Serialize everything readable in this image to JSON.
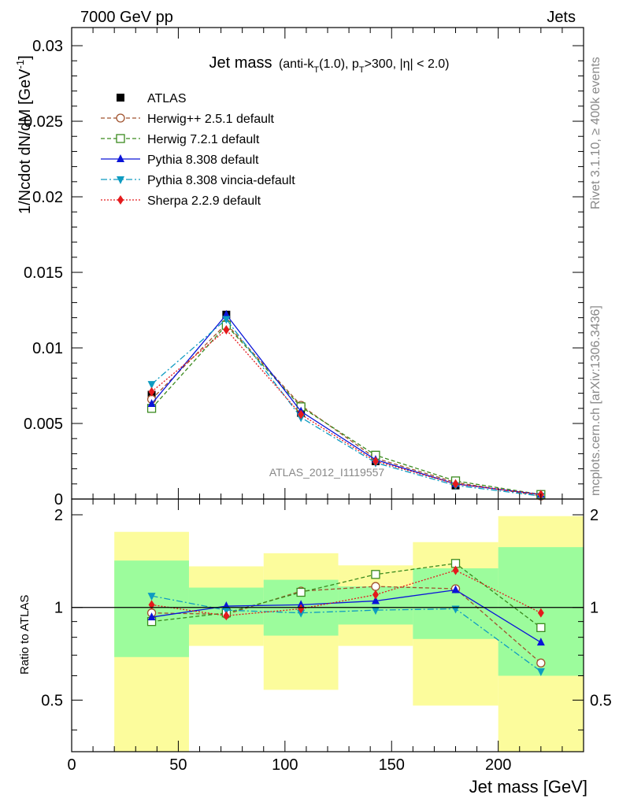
{
  "header": {
    "left": "7000 GeV pp",
    "right": "Jets"
  },
  "side_texts": {
    "rivet": "Rivet 3.1.10, ≥ 400k events",
    "mcplots": "mcplots.cern.ch [arXiv:1306.3436]"
  },
  "watermark": "ATLAS_2012_I1119557",
  "chart_data": {
    "type": "line",
    "title": {
      "main": "Jet mass",
      "detail": "(anti-k",
      "detail_sub": "T",
      "detail_mid": "(1.0), p",
      "detail_sub2": "T",
      "detail_end": ">300, |η| < 2.0)"
    },
    "xlabel": "Jet mass [GeV]",
    "ylabel_main": "1/Ncdot dN/dM [GeV",
    "ylabel_sup": "-1",
    "ylabel_main_close": "]",
    "ylabel_ratio": "Ratio to ATLAS",
    "xlim": [
      0,
      240
    ],
    "ylim_main": [
      0,
      0.0312
    ],
    "ylim_ratio": [
      0.34,
      2.25
    ],
    "x_ticks": [
      "0",
      "50",
      "100",
      "150",
      "200"
    ],
    "y_ticks_main": [
      "0",
      "0.005",
      "0.01",
      "0.015",
      "0.02",
      "0.025",
      "0.03"
    ],
    "y_ticks_ratio": [
      "0.5",
      "1",
      "2"
    ],
    "x": [
      37.5,
      72.5,
      107.5,
      142.5,
      180,
      220
    ],
    "bin_edges": [
      20,
      55,
      90,
      125,
      160,
      200,
      240
    ],
    "data": {
      "name": "ATLAS",
      "values": [
        0.0069,
        0.0122,
        0.0057,
        0.0025,
        0.0009,
        0.0003
      ]
    },
    "ratio_bands": {
      "inner": [
        [
          0.69,
          1.42
        ],
        [
          0.88,
          1.16
        ],
        [
          0.81,
          1.23
        ],
        [
          0.88,
          1.17
        ],
        [
          0.79,
          1.34
        ],
        [
          0.6,
          1.57
        ]
      ],
      "outer": [
        [
          0.34,
          1.76
        ],
        [
          0.75,
          1.36
        ],
        [
          0.54,
          1.5
        ],
        [
          0.75,
          1.37
        ],
        [
          0.48,
          1.63
        ],
        [
          0.34,
          1.98
        ]
      ],
      "inner_color": "#9cfc9c",
      "outer_color": "#fcfc9c"
    },
    "legend_position": "top-left",
    "series": [
      {
        "name": "Herwig++ 2.5.1 default",
        "color": "#a0522d",
        "dash": "5,3",
        "marker": "circle-open",
        "values": [
          0.0066,
          0.0116,
          0.0062,
          0.0027,
          0.0011,
          0.0002
        ],
        "ratio": [
          0.96,
          0.95,
          1.13,
          1.17,
          1.15,
          0.66
        ]
      },
      {
        "name": "Herwig 7.2.1 default",
        "color": "#3a8a1e",
        "dash": "5,3",
        "marker": "square-open",
        "values": [
          0.006,
          0.0115,
          0.0061,
          0.0029,
          0.0012,
          0.0003
        ],
        "ratio": [
          0.9,
          0.96,
          1.12,
          1.28,
          1.39,
          0.86
        ]
      },
      {
        "name": "Pythia 8.308 default",
        "color": "#0a14d8",
        "dash": "",
        "marker": "triangle-up",
        "values": [
          0.0063,
          0.0122,
          0.0058,
          0.0026,
          0.001,
          0.0003
        ],
        "ratio": [
          0.93,
          1.01,
          1.02,
          1.05,
          1.14,
          0.77
        ]
      },
      {
        "name": "Pythia 8.308 vincia-default",
        "color": "#0e9bc1",
        "dash": "8,3,2,3",
        "marker": "triangle-down",
        "values": [
          0.0076,
          0.0119,
          0.0054,
          0.0024,
          0.0009,
          0.0002
        ],
        "ratio": [
          1.09,
          0.98,
          0.96,
          0.98,
          0.99,
          0.62
        ]
      },
      {
        "name": "Sherpa 2.2.9 default",
        "color": "#e41a1c",
        "dash": "2,2",
        "marker": "diamond",
        "values": [
          0.0071,
          0.0112,
          0.0056,
          0.0025,
          0.001,
          0.0003
        ],
        "ratio": [
          1.02,
          0.94,
          0.99,
          1.1,
          1.32,
          0.96
        ]
      }
    ]
  }
}
